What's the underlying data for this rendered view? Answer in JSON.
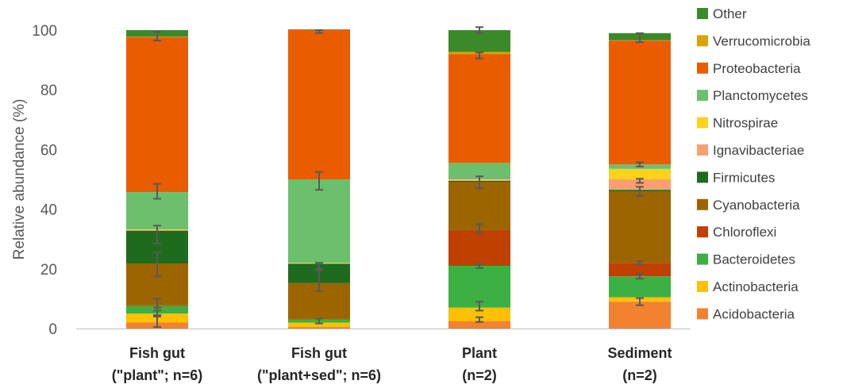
{
  "chart_data": {
    "type": "bar",
    "stacked": true,
    "categories": [
      [
        "Fish gut",
        "(\"plant\"; n=6)"
      ],
      [
        "Fish gut",
        "(\"plant+sed\"; n=6)"
      ],
      [
        "Plant",
        "(n=2)"
      ],
      [
        "Sediment",
        "(n=2)"
      ]
    ],
    "ylabel": "Relative abundance (%)",
    "xlabel": "",
    "ylim": [
      0,
      100
    ],
    "yticks": [
      0,
      20,
      40,
      60,
      80,
      100
    ],
    "grid": false,
    "legend_position": "right",
    "series": [
      {
        "name": "Acidobacteria",
        "color": "#f28230",
        "values": [
          2.0,
          0.5,
          2.5,
          9.0
        ]
      },
      {
        "name": "Actinobacteria",
        "color": "#ffc000",
        "values": [
          3.0,
          1.5,
          4.5,
          1.5
        ]
      },
      {
        "name": "Bacteroidetes",
        "color": "#3cb043",
        "values": [
          2.5,
          1.0,
          14.0,
          7.0
        ]
      },
      {
        "name": "Chloroflexi",
        "color": "#c04000",
        "values": [
          0.3,
          0.2,
          12.0,
          4.5
        ]
      },
      {
        "name": "Cyanobacteria",
        "color": "#9c6500",
        "values": [
          14.0,
          12.0,
          16.0,
          24.0
        ]
      },
      {
        "name": "Firmicutes",
        "color": "#1e6b1e",
        "values": [
          11.0,
          6.5,
          0.5,
          0.5
        ]
      },
      {
        "name": "Ignavibacteriae",
        "color": "#f8a070",
        "values": [
          0.2,
          0.1,
          0.3,
          3.5
        ]
      },
      {
        "name": "Nitrospirae",
        "color": "#ffd21a",
        "values": [
          0.2,
          0.2,
          0.2,
          3.5
        ]
      },
      {
        "name": "Planctomycetes",
        "color": "#6cc06c",
        "values": [
          12.5,
          28.0,
          5.5,
          1.5
        ]
      },
      {
        "name": "Proteobacteria",
        "color": "#e95d00",
        "values": [
          52.0,
          50.0,
          36.5,
          41.5
        ]
      },
      {
        "name": "Verrucomicrobia",
        "color": "#d9a300",
        "values": [
          0.1,
          0.1,
          0.7,
          0.1
        ]
      },
      {
        "name": "Other",
        "color": "#3a8a2a",
        "values": [
          2.2,
          0.2,
          7.3,
          2.4
        ]
      }
    ],
    "error_bars": [
      [
        [
          2.5,
          2.0
        ],
        [
          5.5,
          1.5
        ],
        [
          8.0,
          2.0
        ],
        [
          21.5,
          4.0
        ],
        [
          31.5,
          3.0
        ],
        [
          46.0,
          2.5
        ],
        [
          98.0,
          1.5
        ]
      ],
      [
        [
          2.5,
          0.8
        ],
        [
          16.0,
          3.5
        ],
        [
          21.0,
          1.0
        ],
        [
          49.5,
          3.0
        ],
        [
          99.5,
          0.5
        ]
      ],
      [
        [
          3.0,
          0.8
        ],
        [
          7.5,
          1.5
        ],
        [
          21.0,
          0.7
        ],
        [
          33.5,
          1.5
        ],
        [
          49.0,
          2.0
        ],
        [
          91.5,
          1.0
        ],
        [
          100.0,
          1.0
        ]
      ],
      [
        [
          9.0,
          1.2
        ],
        [
          17.5,
          0.8
        ],
        [
          22.0,
          0.5
        ],
        [
          46.0,
          1.5
        ],
        [
          49.5,
          0.7
        ],
        [
          55.0,
          0.7
        ],
        [
          97.5,
          1.5
        ]
      ]
    ]
  }
}
